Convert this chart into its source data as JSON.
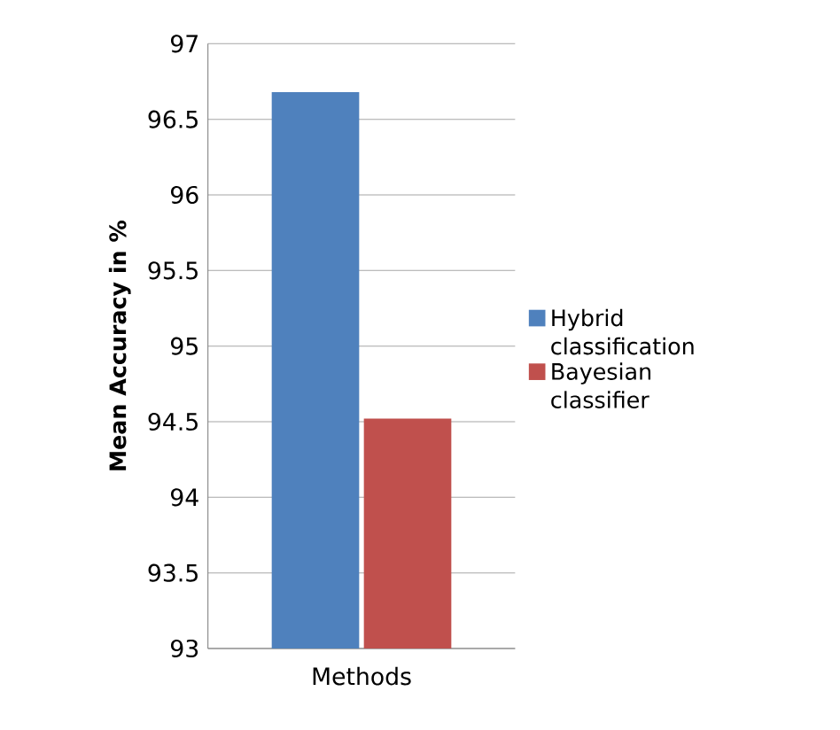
{
  "chart_data": {
    "type": "bar",
    "ylabel": "Mean Accuracy in %",
    "categories": [
      "Methods"
    ],
    "series": [
      {
        "name": "Hybrid classification",
        "color": "#4f81bd",
        "values": [
          96.68
        ]
      },
      {
        "name": "Bayesian classifier",
        "color": "#c0504d",
        "values": [
          94.52
        ]
      }
    ],
    "ylim": [
      93,
      97
    ],
    "yticks": [
      93,
      93.5,
      94,
      94.5,
      95,
      95.5,
      96,
      96.5,
      97
    ],
    "grid": "y",
    "legend": "right"
  }
}
